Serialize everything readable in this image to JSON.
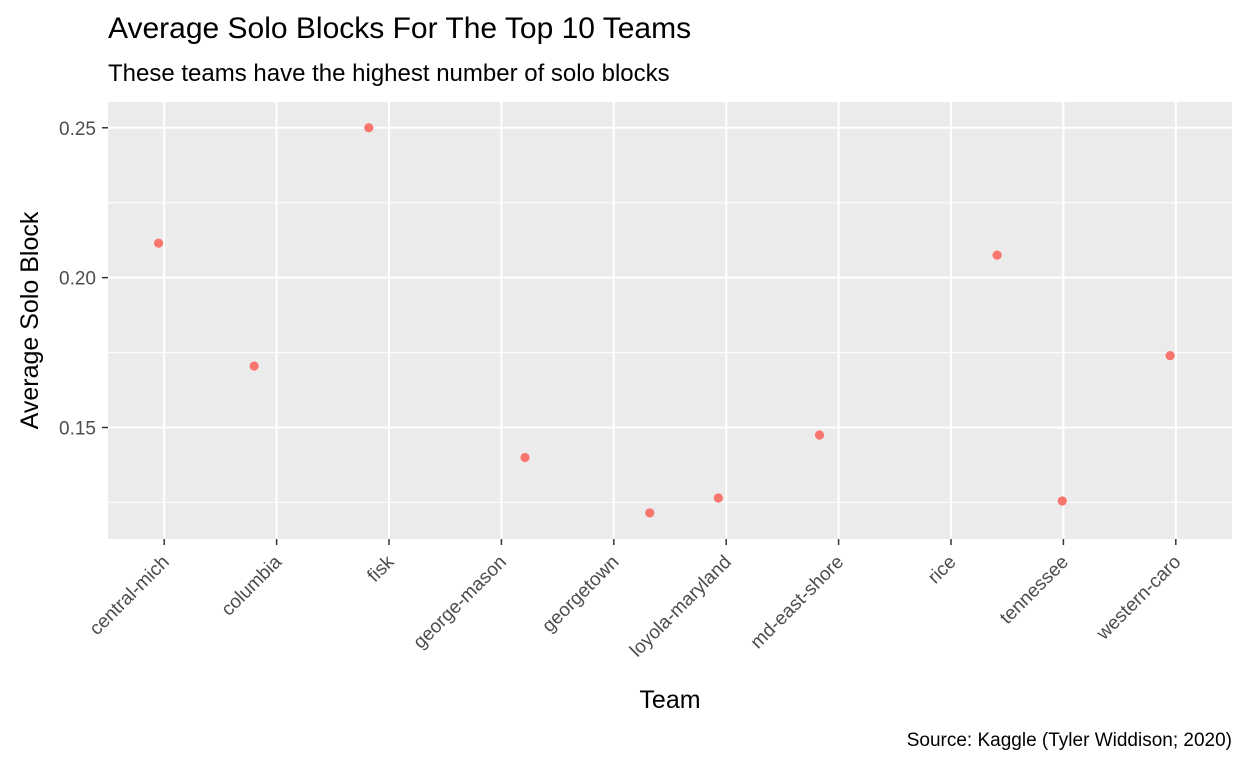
{
  "chart_data": {
    "type": "scatter",
    "title": "Average Solo Blocks For The Top 10 Teams",
    "subtitle": "These teams have the highest number of solo blocks",
    "caption": "Source: Kaggle (Tyler Widdison; 2020)",
    "xlabel": "Team",
    "ylabel": "Average Solo Block",
    "categories": [
      "central-mich",
      "columbia",
      "fisk",
      "george-mason",
      "georgetown",
      "loyola-maryland",
      "md-east-shore",
      "rice",
      "tennessee",
      "western-caro"
    ],
    "points": [
      {
        "team": "central-mich",
        "jitter": -0.05,
        "y": 0.2115
      },
      {
        "team": "columbia",
        "jitter": -0.2,
        "y": 0.1705
      },
      {
        "team": "fisk",
        "jitter": -0.18,
        "y": 0.25
      },
      {
        "team": "george-mason",
        "jitter": 0.21,
        "y": 0.14
      },
      {
        "team": "georgetown",
        "jitter": 0.32,
        "y": 0.1215
      },
      {
        "team": "loyola-maryland",
        "jitter": -0.07,
        "y": 0.1265
      },
      {
        "team": "md-east-shore",
        "jitter": -0.17,
        "y": 0.1475
      },
      {
        "team": "rice",
        "jitter": 0.41,
        "y": 0.2075
      },
      {
        "team": "tennessee",
        "jitter": -0.01,
        "y": 0.1255
      },
      {
        "team": "western-caro",
        "jitter": -0.05,
        "y": 0.174
      }
    ],
    "y_ticks": [
      0.15,
      0.2,
      0.25
    ],
    "y_tick_labels": [
      "0.15",
      "0.20",
      "0.25"
    ],
    "y_minor_ticks": [
      0.125,
      0.175,
      0.225
    ],
    "ylim": [
      0.1128,
      0.2586
    ],
    "point_color": "#F8766D",
    "panel_background": "#EBEBEB",
    "grid_color": "#FFFFFF",
    "grid": true,
    "legend": "none"
  }
}
